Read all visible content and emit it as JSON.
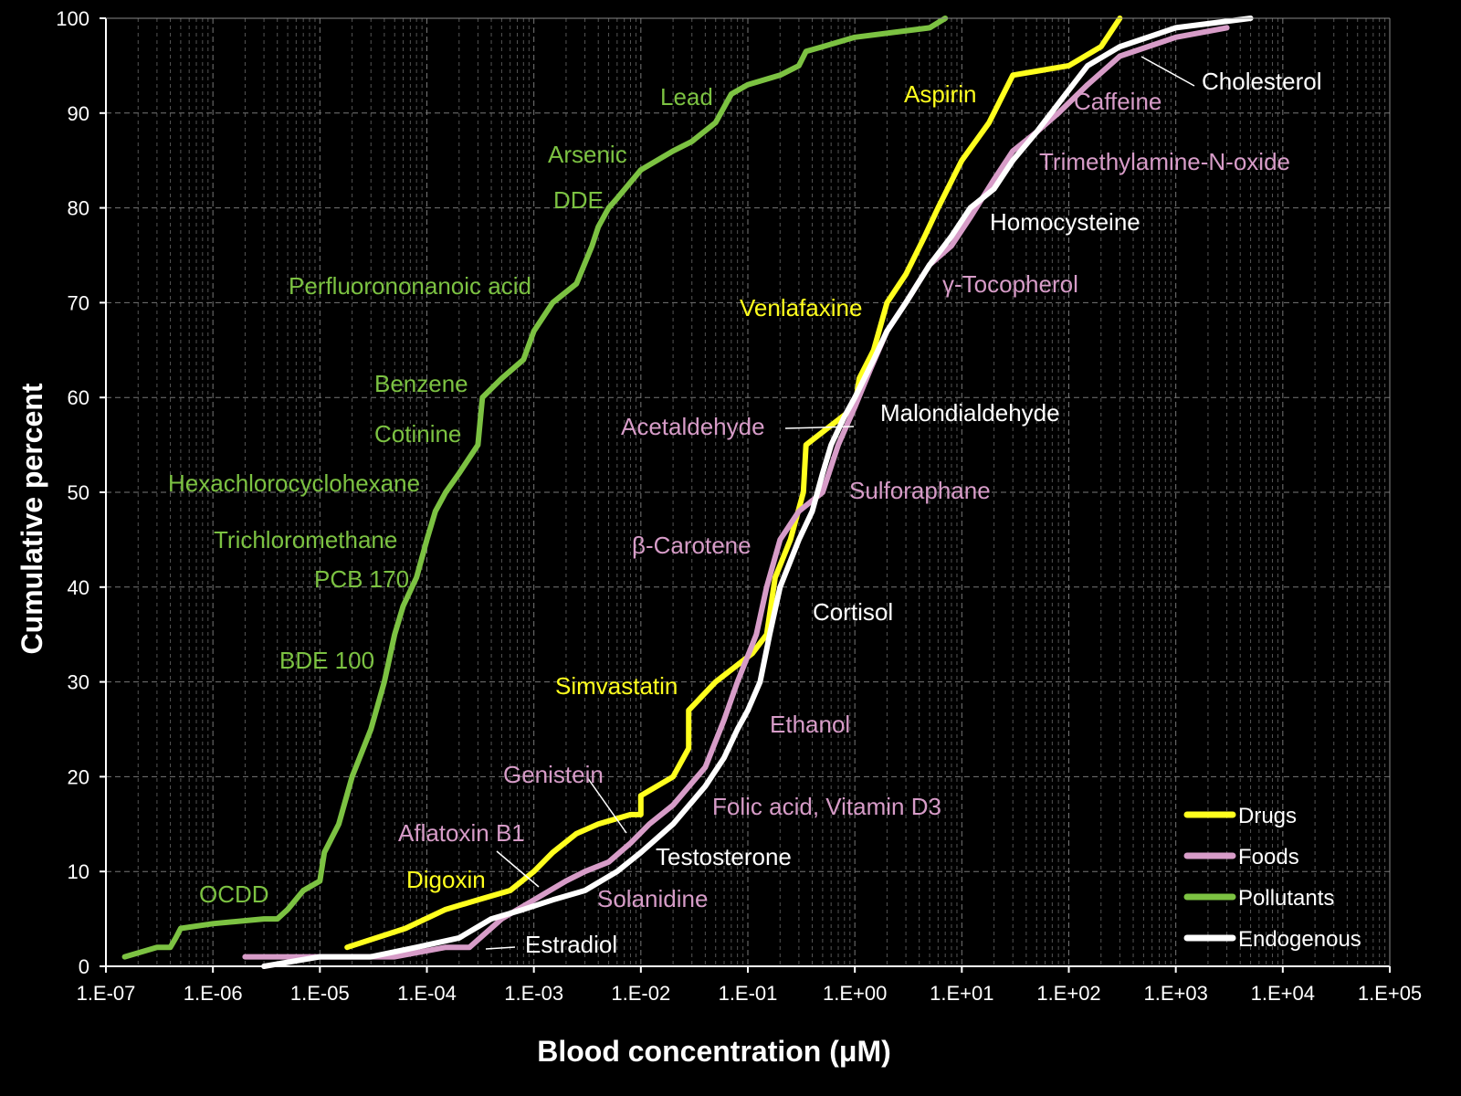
{
  "chart_data": {
    "type": "line",
    "title": "",
    "xlabel": "Blood concentration (μM)",
    "ylabel": "Cumulative percent",
    "xscale": "log",
    "xlim": [
      1e-07,
      100000.0
    ],
    "ylim": [
      0,
      100
    ],
    "x_ticks": [
      "1.E-07",
      "1.E-06",
      "1.E-05",
      "1.E-04",
      "1.E-03",
      "1.E-02",
      "1.E-01",
      "1.E+00",
      "1.E+01",
      "1.E+02",
      "1.E+03",
      "1.E+04",
      "1.E+05"
    ],
    "y_ticks": [
      "0",
      "10",
      "20",
      "30",
      "40",
      "50",
      "60",
      "70",
      "80",
      "90",
      "100"
    ],
    "grid": "major and minor (dashed)",
    "legend_position": "bottom-right",
    "background": "#000000",
    "series": [
      {
        "name": "Drugs",
        "color": "#ffff1e",
        "x": [
          1.8e-05,
          6.3e-05,
          0.00015,
          0.0003,
          0.0006,
          0.001,
          0.0015,
          0.0025,
          0.004,
          0.008,
          0.01,
          0.01,
          0.02,
          0.028,
          0.028,
          0.05,
          0.11,
          0.15,
          0.18,
          0.25,
          0.33,
          0.35,
          1.0,
          1.1,
          1.5,
          2.0,
          3.0,
          4.5,
          6.0,
          10.0,
          18.0,
          30.0,
          100.0,
          200.0,
          300.0
        ],
        "y": [
          2,
          4,
          6,
          7,
          8,
          10,
          12,
          14,
          15,
          16,
          16,
          18,
          20,
          23,
          27,
          30,
          33,
          35,
          41,
          45,
          50,
          55,
          59,
          62,
          65,
          70,
          73,
          77,
          80,
          85,
          89,
          94,
          95,
          97,
          100
        ]
      },
      {
        "name": "Foods",
        "color": "#d79cc8",
        "x": [
          2e-06,
          1e-05,
          5e-05,
          0.00015,
          0.00025,
          0.0005,
          0.001,
          0.002,
          0.003,
          0.005,
          0.008,
          0.012,
          0.02,
          0.04,
          0.06,
          0.08,
          0.12,
          0.15,
          0.2,
          0.3,
          0.5,
          0.7,
          1.0,
          1.4,
          2.0,
          3.0,
          5.0,
          8.0,
          12.0,
          20.0,
          30.0,
          50.0,
          80.0,
          150.0,
          300.0,
          1000.0,
          3000.0
        ],
        "y": [
          1,
          1,
          1,
          2,
          2,
          5,
          7,
          9,
          10,
          11,
          13,
          15,
          17,
          21,
          26,
          30,
          35,
          40,
          45,
          48,
          50,
          55,
          59,
          63,
          67,
          70,
          74,
          76,
          79,
          83,
          86,
          88,
          90,
          93,
          96,
          98,
          99
        ]
      },
      {
        "name": "Pollutants",
        "color": "#7cc242",
        "x": [
          1.5e-07,
          3e-07,
          4e-07,
          4.5e-07,
          5e-07,
          1e-06,
          3e-06,
          4e-06,
          5e-06,
          7e-06,
          1e-05,
          1.1e-05,
          1.5e-05,
          2e-05,
          3e-05,
          4e-05,
          5e-05,
          6e-05,
          8e-05,
          0.0001,
          0.00012,
          0.00015,
          0.0002,
          0.0003,
          0.00033,
          0.0005,
          0.0008,
          0.001,
          0.0015,
          0.0025,
          0.0035,
          0.004,
          0.005,
          0.006,
          0.01,
          0.02,
          0.03,
          0.05,
          0.07,
          0.1,
          0.2,
          0.3,
          0.35,
          0.5,
          1.0,
          5.0,
          7.0
        ],
        "y": [
          1,
          2,
          2,
          3,
          4,
          4.5,
          5,
          5,
          6,
          8,
          9,
          12,
          15,
          20,
          25,
          30,
          35,
          38,
          41,
          45,
          48,
          50,
          52,
          55,
          60,
          62,
          64,
          67,
          70,
          72,
          76,
          78,
          80,
          81,
          84,
          86,
          87,
          89,
          92,
          93,
          94,
          95,
          96.5,
          97,
          98,
          99,
          100
        ]
      },
      {
        "name": "Endogenous",
        "color": "#ffffff",
        "x": [
          3e-06,
          1e-05,
          3e-05,
          8e-05,
          0.0002,
          0.0004,
          0.0008,
          0.0015,
          0.003,
          0.006,
          0.01,
          0.02,
          0.04,
          0.06,
          0.08,
          0.1,
          0.13,
          0.16,
          0.2,
          0.3,
          0.4,
          0.5,
          0.6,
          0.8,
          1.0,
          1.5,
          2.0,
          3.0,
          5.0,
          8.0,
          12.0,
          20.0,
          30.0,
          50.0,
          80.0,
          150.0,
          300.0,
          1000.0,
          5000.0
        ],
        "y": [
          0,
          1,
          1,
          2,
          3,
          5,
          6,
          7,
          8,
          10,
          12,
          15,
          19,
          22,
          25,
          27,
          30,
          35,
          40,
          45,
          48,
          52,
          55,
          58,
          60,
          64,
          67,
          70,
          74,
          77,
          80,
          82,
          85,
          88,
          91,
          95,
          97,
          99,
          100
        ]
      }
    ],
    "annotations": [
      {
        "text": "Lead",
        "series": "Pollutants"
      },
      {
        "text": "Arsenic",
        "series": "Pollutants"
      },
      {
        "text": "DDE",
        "series": "Pollutants"
      },
      {
        "text": "Perfluorononanoic acid",
        "series": "Pollutants"
      },
      {
        "text": "Benzene",
        "series": "Pollutants"
      },
      {
        "text": "Cotinine",
        "series": "Pollutants"
      },
      {
        "text": "Hexachlorocyclohexane",
        "series": "Pollutants"
      },
      {
        "text": "Trichloromethane",
        "series": "Pollutants"
      },
      {
        "text": "PCB 170",
        "series": "Pollutants"
      },
      {
        "text": "BDE 100",
        "series": "Pollutants"
      },
      {
        "text": "OCDD",
        "series": "Pollutants"
      },
      {
        "text": "Aspirin",
        "series": "Drugs"
      },
      {
        "text": "Venlafaxine",
        "series": "Drugs"
      },
      {
        "text": "Simvastatin",
        "series": "Drugs"
      },
      {
        "text": "Digoxin",
        "series": "Drugs"
      },
      {
        "text": "Caffeine",
        "series": "Foods"
      },
      {
        "text": "Trimethylamine-N-oxide",
        "series": "Foods"
      },
      {
        "text": "γ-Tocopherol",
        "series": "Foods"
      },
      {
        "text": "Acetaldehyde",
        "series": "Foods"
      },
      {
        "text": "Sulforaphane",
        "series": "Foods"
      },
      {
        "text": "β-Carotene",
        "series": "Foods"
      },
      {
        "text": "Ethanol",
        "series": "Foods"
      },
      {
        "text": "Genistein",
        "series": "Foods"
      },
      {
        "text": "Folic acid, Vitamin D3",
        "series": "Foods"
      },
      {
        "text": "Aflatoxin B1",
        "series": "Foods"
      },
      {
        "text": "Solanidine",
        "series": "Foods"
      },
      {
        "text": "Cholesterol",
        "series": "Endogenous"
      },
      {
        "text": "Homocysteine",
        "series": "Endogenous"
      },
      {
        "text": "Malondialdehyde",
        "series": "Endogenous"
      },
      {
        "text": "Cortisol",
        "series": "Endogenous"
      },
      {
        "text": "Testosterone",
        "series": "Endogenous"
      },
      {
        "text": "Estradiol",
        "series": "Endogenous"
      }
    ]
  }
}
